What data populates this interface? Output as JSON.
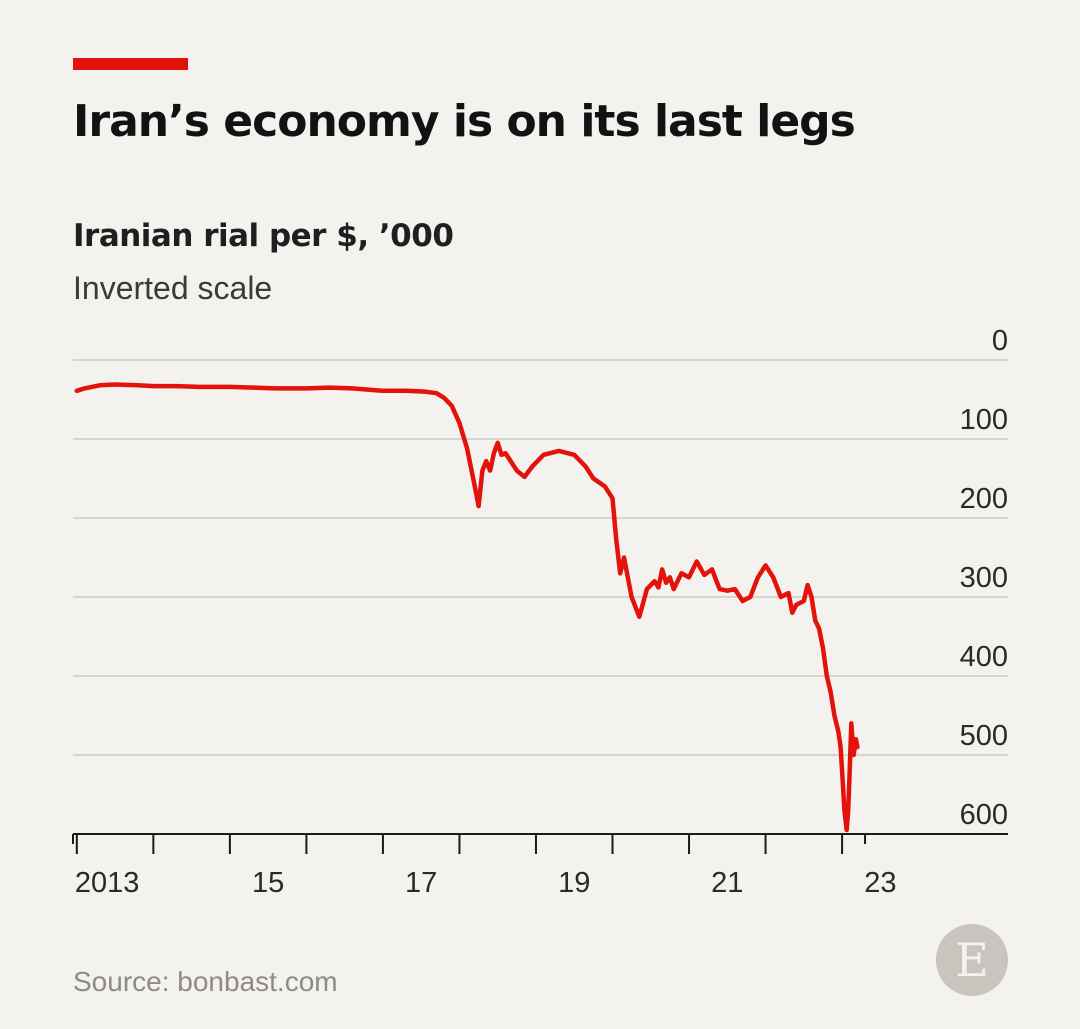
{
  "header": {
    "title": "Iran’s economy is on its last legs",
    "subtitle": "Iranian rial per $, ’000",
    "note": "Inverted scale",
    "accent_color": "#e3120b"
  },
  "footer": {
    "source": "Source: bonbast.com",
    "logo": "E"
  },
  "chart_data": {
    "type": "line",
    "title": "Iran’s economy is on its last legs",
    "ylabel": "Iranian rial per $, ’000",
    "y_note": "Inverted scale",
    "y_inverted": true,
    "ylim": [
      0,
      600
    ],
    "y_ticks": [
      "0",
      "100",
      "200",
      "300",
      "400",
      "500",
      "600"
    ],
    "y_axis_position": "right",
    "xlim": [
      2012.95,
      2023.6
    ],
    "x_ticks": [
      2013,
      2014,
      2015,
      2016,
      2017,
      2018,
      2019,
      2020,
      2021,
      2022,
      2023
    ],
    "x_tick_labels": [
      {
        "year": 2013,
        "label": "2013"
      },
      {
        "year": 2015,
        "label": "15"
      },
      {
        "year": 2017,
        "label": "17"
      },
      {
        "year": 2019,
        "label": "19"
      },
      {
        "year": 2021,
        "label": "21"
      },
      {
        "year": 2023,
        "label": "23"
      }
    ],
    "grid": true,
    "line_color": "#e3120b",
    "series": [
      {
        "x": [
          2013.0,
          2013.1,
          2013.3,
          2013.5,
          2013.8,
          2014.0,
          2014.3,
          2014.6,
          2015.0,
          2015.3,
          2015.6,
          2016.0,
          2016.3,
          2016.6,
          2017.0,
          2017.3,
          2017.55,
          2017.7,
          2017.8,
          2017.9,
          2018.0,
          2018.1,
          2018.2,
          2018.25,
          2018.3,
          2018.35,
          2018.4,
          2018.45,
          2018.5,
          2018.55,
          2018.6,
          2018.65,
          2018.75,
          2018.85,
          2018.95,
          2019.1,
          2019.3,
          2019.5,
          2019.65,
          2019.75,
          2019.9,
          2020.0,
          2020.05,
          2020.1,
          2020.15,
          2020.25,
          2020.35,
          2020.45,
          2020.55,
          2020.6,
          2020.65,
          2020.7,
          2020.75,
          2020.8,
          2020.9,
          2021.0,
          2021.1,
          2021.2,
          2021.3,
          2021.4,
          2021.5,
          2021.6,
          2021.7,
          2021.8,
          2021.9,
          2022.0,
          2022.1,
          2022.2,
          2022.3,
          2022.35,
          2022.4,
          2022.5,
          2022.55,
          2022.6,
          2022.65,
          2022.7,
          2022.75,
          2022.8,
          2022.85,
          2022.9,
          2022.95,
          2022.98,
          2023.0,
          2023.03,
          2023.06,
          2023.08,
          2023.1,
          2023.12,
          2023.15,
          2023.18,
          2023.2
        ],
        "values": [
          39,
          36,
          32,
          31,
          32,
          33,
          33,
          34,
          34,
          35,
          36,
          36,
          35,
          36,
          39,
          39,
          40,
          42,
          48,
          58,
          80,
          112,
          160,
          185,
          140,
          128,
          140,
          118,
          105,
          120,
          118,
          125,
          140,
          148,
          135,
          120,
          115,
          120,
          135,
          150,
          160,
          175,
          228,
          270,
          250,
          300,
          325,
          290,
          280,
          288,
          265,
          282,
          275,
          290,
          270,
          275,
          255,
          272,
          265,
          290,
          292,
          290,
          305,
          300,
          275,
          260,
          275,
          300,
          295,
          320,
          310,
          305,
          285,
          300,
          330,
          340,
          365,
          400,
          420,
          450,
          470,
          490,
          520,
          570,
          595,
          570,
          520,
          460,
          500,
          480,
          490
        ]
      }
    ]
  }
}
